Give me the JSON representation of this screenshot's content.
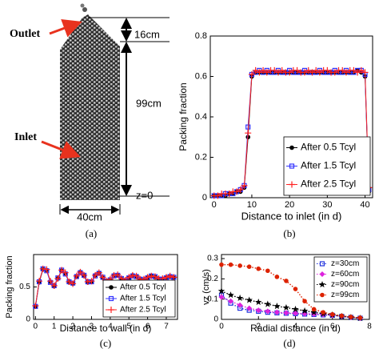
{
  "diagram": {
    "labels": {
      "outlet": "Outlet",
      "inlet": "Inlet",
      "cone_height": "16cm",
      "cylinder_height": "99cm",
      "origin": "z=0",
      "width": "40cm"
    },
    "caption": "(a)"
  },
  "chart_data": [
    {
      "type": "line",
      "caption": "(b)",
      "x_label": "Distance to inlet (in d)",
      "y_label": "Packing fraction",
      "x": [
        0,
        1,
        2,
        3,
        4,
        5,
        6,
        7,
        8,
        9,
        10,
        11,
        12,
        13,
        14,
        15,
        16,
        17,
        18,
        19,
        20,
        21,
        22,
        23,
        24,
        25,
        26,
        27,
        28,
        29,
        30,
        31,
        32,
        33,
        34,
        35,
        36,
        37,
        38,
        39,
        40,
        41
      ],
      "xlim": [
        -1,
        42
      ],
      "xticks": [
        0,
        10,
        20,
        30,
        40
      ],
      "ylim": [
        0,
        0.8
      ],
      "yticks": [
        0,
        0.2,
        0.4,
        0.6,
        0.8
      ],
      "legend": "lower right",
      "series": [
        {
          "name": "After 0.5 Tcyl",
          "color": "#000000",
          "marker": "circle",
          "line_style": "solid",
          "values": [
            0.01,
            0.01,
            0.01,
            0.01,
            0.02,
            0.02,
            0.03,
            0.03,
            0.05,
            0.3,
            0.6,
            0.62,
            0.62,
            0.62,
            0.62,
            0.62,
            0.62,
            0.62,
            0.62,
            0.62,
            0.62,
            0.62,
            0.62,
            0.62,
            0.62,
            0.62,
            0.62,
            0.62,
            0.62,
            0.62,
            0.62,
            0.62,
            0.62,
            0.62,
            0.62,
            0.62,
            0.62,
            0.62,
            0.63,
            0.62,
            0.6,
            0.03
          ]
        },
        {
          "name": "After 1.5 Tcyl",
          "color": "#3333ff",
          "marker": "square",
          "line_style": "solid",
          "values": [
            0.01,
            0.01,
            0.01,
            0.02,
            0.02,
            0.02,
            0.03,
            0.04,
            0.06,
            0.35,
            0.61,
            0.62,
            0.63,
            0.62,
            0.63,
            0.62,
            0.62,
            0.63,
            0.62,
            0.62,
            0.63,
            0.62,
            0.62,
            0.62,
            0.63,
            0.62,
            0.62,
            0.62,
            0.63,
            0.62,
            0.62,
            0.62,
            0.63,
            0.62,
            0.62,
            0.63,
            0.62,
            0.62,
            0.63,
            0.63,
            0.61,
            0.04
          ]
        },
        {
          "name": "After 2.5 Tcyl",
          "color": "#ff2222",
          "marker": "plus",
          "line_style": "solid",
          "values": [
            0.01,
            0.01,
            0.02,
            0.02,
            0.02,
            0.03,
            0.03,
            0.04,
            0.06,
            0.32,
            0.61,
            0.63,
            0.62,
            0.63,
            0.62,
            0.63,
            0.63,
            0.62,
            0.63,
            0.62,
            0.62,
            0.63,
            0.63,
            0.62,
            0.62,
            0.63,
            0.62,
            0.63,
            0.62,
            0.63,
            0.63,
            0.62,
            0.62,
            0.63,
            0.63,
            0.62,
            0.63,
            0.63,
            0.62,
            0.63,
            0.62,
            0.05
          ]
        }
      ]
    },
    {
      "type": "line",
      "caption": "(c)",
      "x_label": "Distance to wall (in d)",
      "y_label": "Packing fraction",
      "x": [
        0,
        0.2,
        0.4,
        0.6,
        0.8,
        1,
        1.2,
        1.4,
        1.6,
        1.8,
        2,
        2.2,
        2.4,
        2.6,
        2.8,
        3,
        3.2,
        3.4,
        3.6,
        3.8,
        4,
        4.2,
        4.4,
        4.6,
        4.8,
        5,
        5.2,
        5.4,
        5.6,
        5.8,
        6,
        6.2,
        6.4,
        6.6,
        6.8,
        7,
        7.2,
        7.4
      ],
      "xlim": [
        -0.1,
        7.6
      ],
      "xticks": [
        0,
        1,
        2,
        3,
        4,
        5,
        6,
        7
      ],
      "ylim": [
        0,
        1
      ],
      "yticks": [
        0,
        0.5
      ],
      "legend": "lower right",
      "series": [
        {
          "name": "After 0.5 Tcyl",
          "color": "#000000",
          "marker": "circle",
          "line_style": "solid",
          "values": [
            0.2,
            0.57,
            0.77,
            0.76,
            0.58,
            0.51,
            0.63,
            0.75,
            0.71,
            0.57,
            0.55,
            0.66,
            0.73,
            0.67,
            0.57,
            0.58,
            0.68,
            0.71,
            0.64,
            0.58,
            0.61,
            0.68,
            0.68,
            0.62,
            0.59,
            0.64,
            0.68,
            0.66,
            0.61,
            0.61,
            0.65,
            0.67,
            0.65,
            0.62,
            0.62,
            0.65,
            0.66,
            0.64
          ]
        },
        {
          "name": "After 1.5 Tcyl",
          "color": "#3333ff",
          "marker": "square",
          "line_style": "solid",
          "values": [
            0.2,
            0.58,
            0.78,
            0.75,
            0.57,
            0.52,
            0.64,
            0.76,
            0.7,
            0.58,
            0.56,
            0.66,
            0.72,
            0.68,
            0.58,
            0.58,
            0.67,
            0.71,
            0.65,
            0.59,
            0.61,
            0.67,
            0.68,
            0.63,
            0.6,
            0.64,
            0.67,
            0.66,
            0.62,
            0.61,
            0.64,
            0.67,
            0.66,
            0.62,
            0.62,
            0.64,
            0.66,
            0.65
          ]
        },
        {
          "name": "After 2.5 Tcyl",
          "color": "#ff2222",
          "marker": "plus",
          "line_style": "solid",
          "values": [
            0.21,
            0.59,
            0.78,
            0.77,
            0.59,
            0.52,
            0.63,
            0.76,
            0.72,
            0.58,
            0.55,
            0.67,
            0.73,
            0.68,
            0.58,
            0.59,
            0.68,
            0.72,
            0.65,
            0.59,
            0.62,
            0.68,
            0.69,
            0.63,
            0.6,
            0.65,
            0.68,
            0.67,
            0.62,
            0.62,
            0.65,
            0.67,
            0.66,
            0.63,
            0.63,
            0.65,
            0.67,
            0.65
          ]
        }
      ]
    },
    {
      "type": "line",
      "caption": "(d)",
      "x_label": "Radial distance (in d)",
      "y_label": "vz (cm/s)",
      "x": [
        0,
        0.5,
        1,
        1.5,
        2,
        2.5,
        3,
        3.5,
        4,
        4.5,
        5,
        5.5,
        6,
        6.5,
        7,
        7.5
      ],
      "xlim": [
        0,
        8
      ],
      "xticks": [
        0,
        2,
        4,
        6,
        8
      ],
      "ylim": [
        0,
        0.32
      ],
      "yticks": [
        0,
        0.1,
        0.2,
        0.3
      ],
      "legend": "upper right",
      "series": [
        {
          "name": "z=30cm",
          "color": "#2233dd",
          "marker": "square",
          "line_style": "dotted",
          "values": [
            0.12,
            0.08,
            0.055,
            0.045,
            0.04,
            0.035,
            0.032,
            0.03,
            0.028,
            0.026,
            0.024,
            0.022,
            0.02,
            0.015,
            0.01,
            0.006
          ]
        },
        {
          "name": "z=60cm",
          "color": "#dd22dd",
          "marker": "diamond",
          "line_style": "dotted",
          "values": [
            0.11,
            0.09,
            0.07,
            0.055,
            0.045,
            0.04,
            0.035,
            0.032,
            0.03,
            0.028,
            0.026,
            0.024,
            0.02,
            0.015,
            0.01,
            0.006
          ]
        },
        {
          "name": "z=90cm",
          "color": "#000000",
          "marker": "star",
          "line_style": "dotted",
          "values": [
            0.14,
            0.12,
            0.105,
            0.095,
            0.085,
            0.075,
            0.065,
            0.058,
            0.05,
            0.042,
            0.035,
            0.028,
            0.022,
            0.015,
            0.01,
            0.006
          ]
        },
        {
          "name": "z=99cm",
          "color": "#dd2200",
          "marker": "circle",
          "line_style": "dotted",
          "values": [
            0.27,
            0.27,
            0.265,
            0.26,
            0.25,
            0.24,
            0.21,
            0.19,
            0.15,
            0.09,
            0.05,
            0.035,
            0.025,
            0.018,
            0.012,
            0.008
          ]
        }
      ]
    }
  ]
}
